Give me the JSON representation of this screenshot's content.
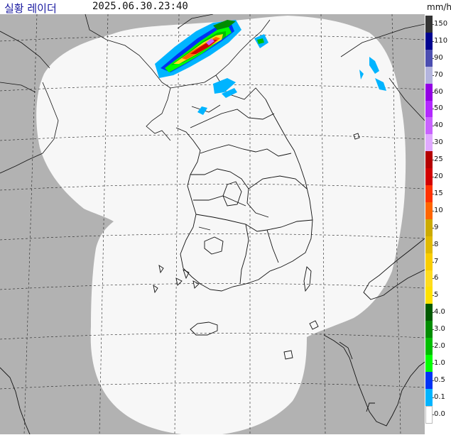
{
  "header": {
    "title": "실황 레이더",
    "timestamp": "2025.06.30.23:40",
    "unit": "mm/h"
  },
  "legend": {
    "labels": [
      "150",
      "110",
      "90",
      "70",
      "60",
      "50",
      "40",
      "30",
      "25",
      "20",
      "15",
      "10",
      "9",
      "8",
      "7",
      "6",
      "5",
      "4.0",
      "3.0",
      "2.0",
      "1.0",
      "0.5",
      "0.1",
      "0.0"
    ],
    "colors": [
      "#333333",
      "#000390",
      "#4c4eb1",
      "#b3b4de",
      "#9300e4",
      "#b329ff",
      "#c963ff",
      "#e0a9ff",
      "#b40000",
      "#d20000",
      "#ff3200",
      "#ff6600",
      "#ccaa00",
      "#e0b900",
      "#f9cd00",
      "#ffdc1f",
      "#ffe100",
      "#005a00",
      "#008c00",
      "#00be00",
      "#00ff00",
      "#0033f5",
      "#00b4ff",
      "#ffffff"
    ]
  },
  "map": {
    "land_color": "#b2b2b2",
    "coverage_color": "#f7f7f7",
    "boundary_color": "#111111",
    "grid_color": "#222222"
  }
}
